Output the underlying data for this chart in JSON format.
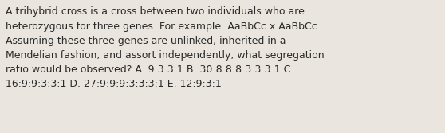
{
  "background_color": "#eae6df",
  "text_color": "#2b2b2b",
  "text": "A trihybrid cross is a cross between two individuals who are\nheterozygous for three genes. For example: AaBbCc x AaBbCc.\nAssuming these three genes are unlinked, inherited in a\nMendelian fashion, and assort independently, what segregation\nratio would be observed? A. 9:3:3:1 B. 30:8:8:8:3:3:3:1 C.\n16:9:9:3:3:1 D. 27:9:9:9:3:3:3:1 E. 12:9:3:1",
  "font_size": 9.0,
  "font_family": "DejaVu Sans",
  "fig_width": 5.58,
  "fig_height": 1.67,
  "dpi": 100
}
